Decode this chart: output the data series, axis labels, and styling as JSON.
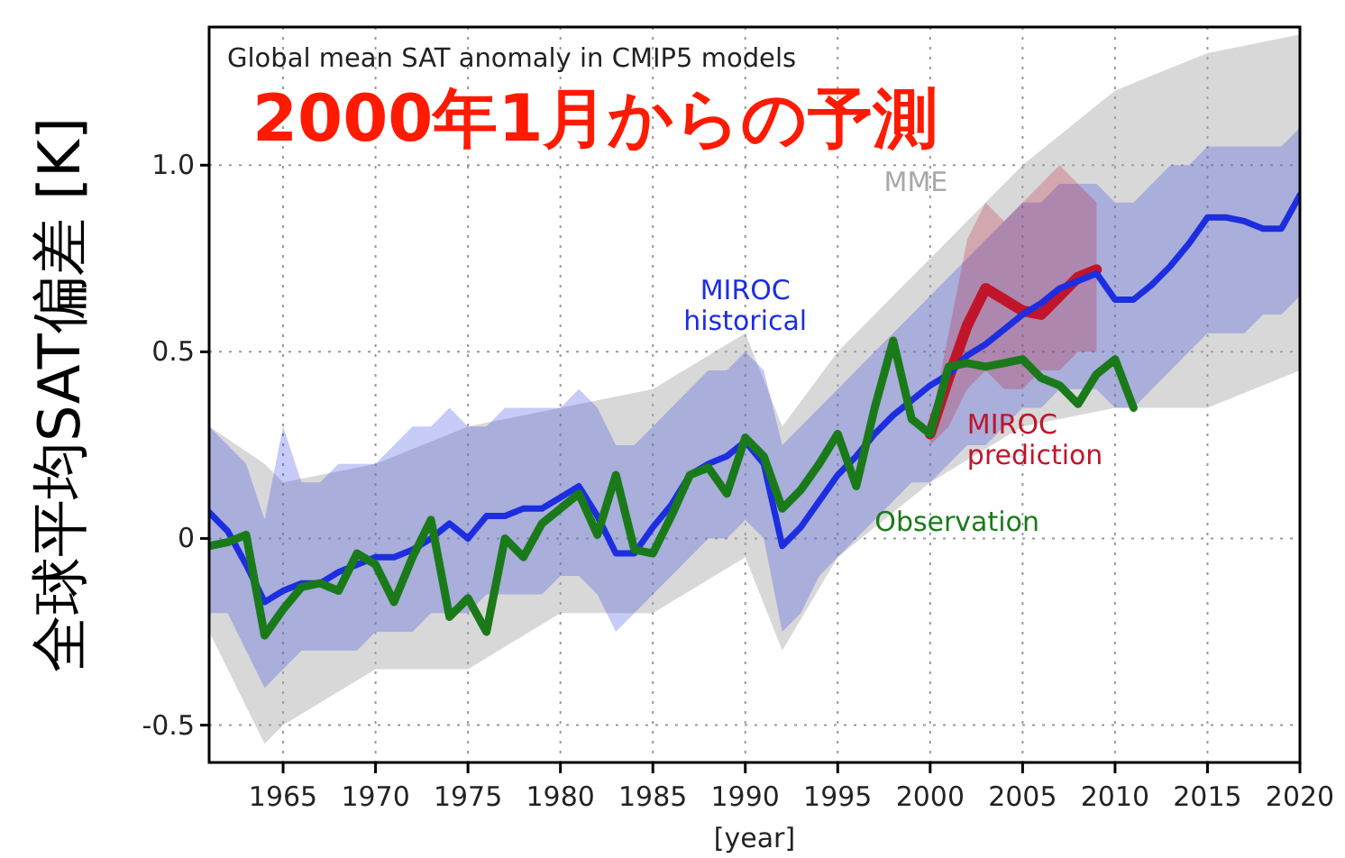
{
  "chart_data": {
    "type": "line",
    "title": "Global mean SAT anomaly in CMIP5 models",
    "subtitle": "2000年1月からの予測",
    "xlabel": "[year]",
    "ylabel": "全球平均SAT偏差 [K]",
    "xlim": [
      1961,
      2020
    ],
    "ylim": [
      -0.6,
      1.37
    ],
    "xticks": [
      1965,
      1970,
      1975,
      1980,
      1985,
      1990,
      1995,
      2000,
      2005,
      2010,
      2015,
      2020
    ],
    "yticks": [
      {
        "value": -0.5,
        "label": "-0.5"
      },
      0,
      {
        "value": 0.5,
        "label": "0.5"
      },
      {
        "value": 1,
        "label": "1.0"
      }
    ],
    "grid": true,
    "line_style": "solid",
    "marker": "none",
    "series": [
      {
        "name": "MME",
        "color": "#a8a8a8",
        "x": [
          1961,
          1964,
          1965,
          1970,
          1975,
          1980,
          1985,
          1990,
          1992,
          1995,
          2000,
          2005,
          2010,
          2015,
          2020
        ],
        "values": [
          null,
          null,
          null,
          null,
          null,
          null,
          null,
          null,
          null,
          null,
          null,
          null,
          null,
          null,
          null
        ],
        "lower": [
          -0.25,
          -0.55,
          -0.5,
          -0.35,
          -0.35,
          -0.2,
          -0.2,
          -0.05,
          -0.3,
          -0.05,
          0.15,
          0.3,
          0.35,
          0.35,
          0.45
        ],
        "upper": [
          0.3,
          0.2,
          0.15,
          0.2,
          0.3,
          0.35,
          0.4,
          0.55,
          0.3,
          0.5,
          0.75,
          1.0,
          1.2,
          1.3,
          1.35
        ]
      },
      {
        "name": "MIROC historical",
        "color": "#1c2ee0",
        "x": [
          1961,
          1962,
          1963,
          1964,
          1965,
          1966,
          1967,
          1968,
          1969,
          1970,
          1971,
          1972,
          1973,
          1974,
          1975,
          1976,
          1977,
          1978,
          1979,
          1980,
          1981,
          1982,
          1983,
          1984,
          1985,
          1986,
          1987,
          1988,
          1989,
          1990,
          1991,
          1992,
          1993,
          1994,
          1995,
          1996,
          1997,
          1998,
          1999,
          2000,
          2001,
          2002,
          2003,
          2004,
          2005,
          2006,
          2007,
          2008,
          2009,
          2010,
          2011,
          2012,
          2013,
          2014,
          2015,
          2016,
          2017,
          2018,
          2019,
          2020
        ],
        "values": [
          0.07,
          0.02,
          -0.07,
          -0.17,
          -0.14,
          -0.12,
          -0.12,
          -0.09,
          -0.07,
          -0.05,
          -0.05,
          -0.03,
          0.0,
          0.04,
          0.0,
          0.06,
          0.06,
          0.08,
          0.08,
          0.11,
          0.14,
          0.06,
          -0.04,
          -0.04,
          0.03,
          0.09,
          0.17,
          0.2,
          0.22,
          0.26,
          0.2,
          -0.02,
          0.03,
          0.1,
          0.17,
          0.22,
          0.28,
          0.33,
          0.37,
          0.41,
          0.44,
          0.49,
          0.52,
          0.56,
          0.6,
          0.63,
          0.67,
          0.69,
          0.71,
          0.64,
          0.64,
          0.68,
          0.73,
          0.79,
          0.86,
          0.86,
          0.85,
          0.83,
          0.83,
          0.92
        ],
        "lower": [
          -0.2,
          -0.2,
          -0.3,
          -0.4,
          -0.35,
          -0.3,
          -0.3,
          -0.3,
          -0.3,
          -0.25,
          -0.25,
          -0.25,
          -0.2,
          -0.2,
          -0.2,
          -0.15,
          -0.15,
          -0.15,
          -0.15,
          -0.1,
          -0.1,
          -0.15,
          -0.25,
          -0.2,
          -0.15,
          -0.1,
          -0.05,
          0.0,
          0.0,
          0.05,
          0.0,
          -0.25,
          -0.2,
          -0.1,
          -0.05,
          0.0,
          0.05,
          0.1,
          0.15,
          0.15,
          0.2,
          0.25,
          0.25,
          0.3,
          0.35,
          0.35,
          0.4,
          0.4,
          0.4,
          0.35,
          0.35,
          0.4,
          0.45,
          0.5,
          0.55,
          0.55,
          0.55,
          0.6,
          0.6,
          0.65
        ],
        "upper": [
          0.3,
          0.25,
          0.2,
          0.05,
          0.3,
          0.15,
          0.15,
          0.2,
          0.2,
          0.2,
          0.25,
          0.3,
          0.3,
          0.35,
          0.3,
          0.3,
          0.35,
          0.35,
          0.35,
          0.35,
          0.4,
          0.35,
          0.25,
          0.25,
          0.3,
          0.35,
          0.4,
          0.45,
          0.45,
          0.5,
          0.45,
          0.25,
          0.3,
          0.35,
          0.4,
          0.45,
          0.5,
          0.55,
          0.6,
          0.65,
          0.7,
          0.75,
          0.8,
          0.85,
          0.9,
          0.9,
          0.95,
          0.95,
          0.95,
          0.9,
          0.9,
          0.95,
          1.0,
          1.0,
          1.05,
          1.05,
          1.05,
          1.05,
          1.05,
          1.1
        ]
      },
      {
        "name": "MIROC prediction",
        "color": "#c0152a",
        "x": [
          2000,
          2001,
          2002,
          2003,
          2004,
          2005,
          2006,
          2007,
          2008,
          2009
        ],
        "values": [
          0.28,
          0.43,
          0.57,
          0.67,
          0.64,
          0.61,
          0.6,
          0.65,
          0.7,
          0.72
        ],
        "lower": [
          0.25,
          0.3,
          0.4,
          0.45,
          0.4,
          0.4,
          0.45,
          0.45,
          0.5,
          0.5
        ],
        "upper": [
          0.3,
          0.55,
          0.8,
          0.9,
          0.85,
          0.9,
          0.95,
          1.0,
          0.95,
          0.9
        ]
      },
      {
        "name": "Observation",
        "color": "#1a7a1a",
        "x": [
          1961,
          1962,
          1963,
          1964,
          1965,
          1966,
          1967,
          1968,
          1969,
          1970,
          1971,
          1972,
          1973,
          1974,
          1975,
          1976,
          1977,
          1978,
          1979,
          1980,
          1981,
          1982,
          1983,
          1984,
          1985,
          1986,
          1987,
          1988,
          1989,
          1990,
          1991,
          1992,
          1993,
          1994,
          1995,
          1996,
          1997,
          1998,
          1999,
          2000,
          2001,
          2002,
          2003,
          2004,
          2005,
          2006,
          2007,
          2008,
          2009,
          2010,
          2011
        ],
        "values": [
          -0.02,
          -0.01,
          0.01,
          -0.26,
          -0.19,
          -0.13,
          -0.12,
          -0.14,
          -0.04,
          -0.07,
          -0.17,
          -0.05,
          0.05,
          -0.21,
          -0.16,
          -0.25,
          0.0,
          -0.05,
          0.04,
          0.08,
          0.12,
          0.01,
          0.17,
          -0.03,
          -0.04,
          0.06,
          0.17,
          0.19,
          0.12,
          0.27,
          0.22,
          0.08,
          0.13,
          0.2,
          0.28,
          0.14,
          0.35,
          0.53,
          0.32,
          0.28,
          0.46,
          0.47,
          0.46,
          0.47,
          0.48,
          0.43,
          0.41,
          0.36,
          0.44,
          0.48,
          0.35
        ]
      }
    ]
  }
}
